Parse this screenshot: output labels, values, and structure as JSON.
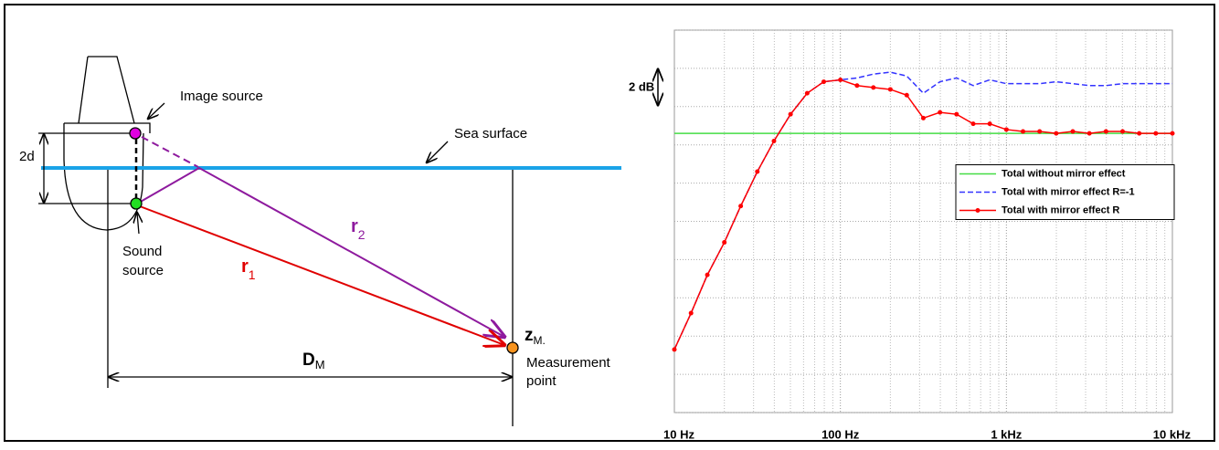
{
  "diagram": {
    "image_source": "Image source",
    "sea_surface": "Sea surface",
    "spacing": "2d",
    "sound_source": [
      "Sound",
      "source"
    ],
    "r1": {
      "main": "r",
      "sub": "1"
    },
    "r2": {
      "main": "r",
      "sub": "2"
    },
    "zm": {
      "main": "z",
      "sub": "M."
    },
    "dm": {
      "main": "D",
      "sub": "M"
    },
    "measurement_point": [
      "Measurement",
      "point"
    ]
  },
  "chart_data": {
    "type": "line",
    "annotation": "2 dB",
    "x": [
      10,
      12.6,
      15.8,
      20,
      25.1,
      31.6,
      39.8,
      50.1,
      63.1,
      79.4,
      100,
      126,
      158,
      200,
      251,
      316,
      398,
      501,
      631,
      794,
      1000,
      1259,
      1585,
      1995,
      2512,
      3162,
      3981,
      5012,
      6310,
      7943,
      10000
    ],
    "series": [
      {
        "name": "Total without mirror effect",
        "color": "#44dd44",
        "style": "solid",
        "markers": false,
        "values": [
          14.6,
          14.6,
          14.6,
          14.6,
          14.6,
          14.6,
          14.6,
          14.6,
          14.6,
          14.6,
          14.6,
          14.6,
          14.6,
          14.6,
          14.6,
          14.6,
          14.6,
          14.6,
          14.6,
          14.6,
          14.6,
          14.6,
          14.6,
          14.6,
          14.6,
          14.6,
          14.6,
          14.6,
          14.6,
          14.6,
          14.6
        ]
      },
      {
        "name": "Total with mirror effect R=-1",
        "color": "#3333ff",
        "style": "dashed",
        "markers": false,
        "values": [
          3.3,
          5.2,
          7.2,
          8.9,
          10.8,
          12.6,
          14.2,
          15.6,
          16.7,
          17.3,
          17.4,
          17.5,
          17.7,
          17.8,
          17.6,
          16.7,
          17.3,
          17.5,
          17.1,
          17.4,
          17.2,
          17.2,
          17.2,
          17.3,
          17.2,
          17.1,
          17.1,
          17.2,
          17.2,
          17.2,
          17.2
        ]
      },
      {
        "name": "Total with mirror effect R",
        "color": "#ff0000",
        "style": "solid",
        "markers": true,
        "values": [
          3.3,
          5.2,
          7.2,
          8.9,
          10.8,
          12.6,
          14.2,
          15.6,
          16.7,
          17.3,
          17.4,
          17.1,
          17.0,
          16.9,
          16.6,
          15.4,
          15.7,
          15.6,
          15.1,
          15.1,
          14.8,
          14.7,
          14.7,
          14.6,
          14.7,
          14.6,
          14.7,
          14.7,
          14.6,
          14.6,
          14.6
        ]
      }
    ],
    "log_x": true,
    "xlim": [
      10,
      10000
    ],
    "xticks": [
      {
        "value": 10,
        "label": "10 Hz"
      },
      {
        "value": 100,
        "label": "100 Hz"
      },
      {
        "value": 1000,
        "label": "1 kHz"
      },
      {
        "value": 10000,
        "label": "10 kHz"
      }
    ],
    "x_minor_ticks": [
      20,
      30,
      40,
      50,
      60,
      70,
      80,
      90,
      200,
      300,
      400,
      500,
      600,
      700,
      800,
      900,
      2000,
      3000,
      4000,
      5000,
      6000,
      7000,
      8000,
      9000
    ],
    "ylim": [
      0,
      20
    ],
    "yticks": [
      0,
      2,
      4,
      6,
      8,
      10,
      12,
      14,
      16,
      18,
      20
    ],
    "grid": true,
    "legend": "center-right"
  }
}
